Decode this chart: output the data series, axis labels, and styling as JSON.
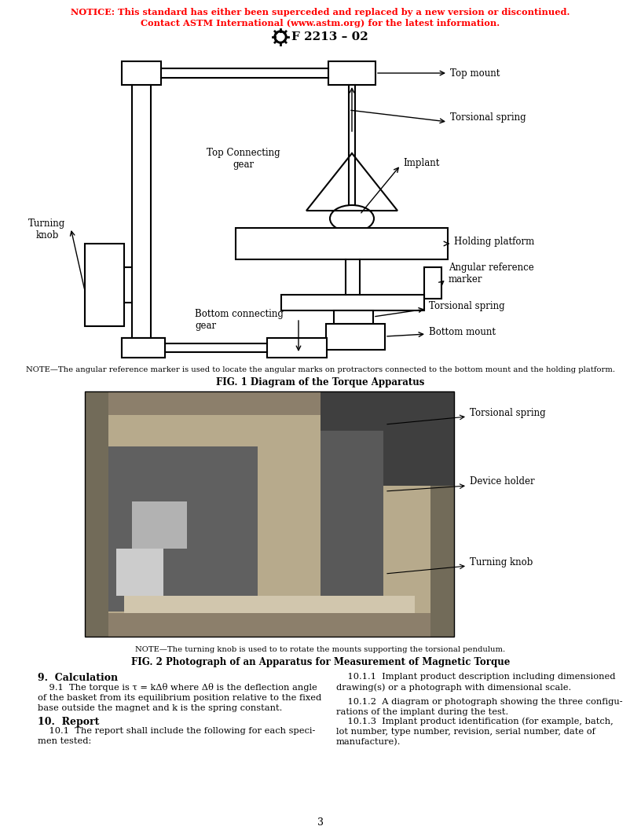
{
  "notice_line1": "NOTICE: This standard has either been superceded and replaced by a new version or discontinued.",
  "notice_line2": "Contact ASTM International (www.astm.org) for the latest information.",
  "notice_color": "#FF0000",
  "header_text": "F 2213 – 02",
  "fig1_caption_note": "NOTE—The angular reference marker is used to locate the angular marks on protractors connected to the bottom mount and the holding platform.",
  "fig1_caption_title": "FIG. 1 Diagram of the Torque Apparatus",
  "fig2_caption_note": "NOTE—The turning knob is used to to rotate the mounts supporting the torsional pendulum.",
  "fig2_caption_title": "FIG. 2 Photograph of an Apparatus for Measurement of Magnetic Torque",
  "section9_title": "9.  Calculation",
  "section10_title": "10.  Report",
  "page_number": "3",
  "bg_color": "#FFFFFF",
  "text_color": "#000000",
  "fig1_labels": {
    "top_mount": "Top mount",
    "torsional_spring_top": "Torsional spring",
    "top_connecting_gear": "Top Connecting\ngear",
    "implant": "Implant",
    "turning_knob": "Turning\nknob",
    "holding_platform": "Holding platform",
    "angular_reference": "Angular reference\nmarker",
    "bottom_connecting_gear": "Bottom connecting\ngear",
    "torsional_spring_bot": "Torsional spring",
    "bottom_mount": "Bottom mount"
  },
  "fig2_labels": {
    "torsional_spring": "Torsional spring",
    "device_holder": "Device holder",
    "turning_knob": "Turning knob"
  }
}
